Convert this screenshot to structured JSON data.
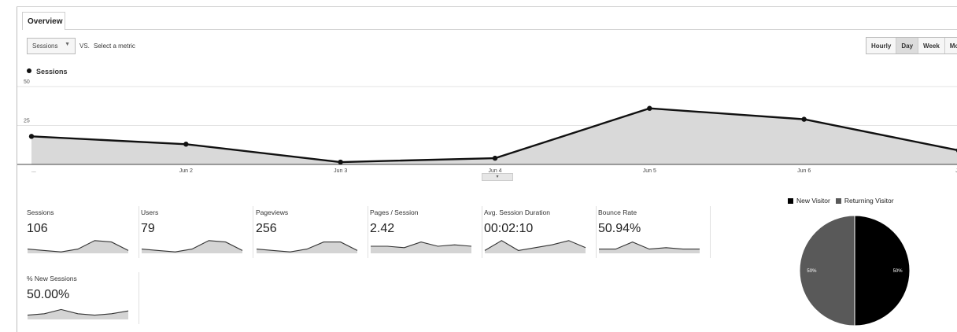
{
  "tab": {
    "label": "Overview"
  },
  "controls": {
    "metric_select": "Sessions",
    "vs_label": "VS.",
    "select_metric": "Select a metric",
    "periods": [
      "Hourly",
      "Day",
      "Week",
      "Mon"
    ],
    "active_period": "Day"
  },
  "chart_data": [
    {
      "type": "area",
      "series": [
        {
          "name": "Sessions",
          "values": [
            18,
            13,
            1.5,
            4,
            36,
            29,
            9
          ]
        }
      ],
      "categories": [
        "...",
        "Jun 2",
        "Jun 3",
        "Jun 4",
        "Jun 5",
        "Jun 6",
        "Ju"
      ],
      "yticks": [
        "50",
        "25"
      ],
      "ylim": [
        0,
        50
      ],
      "grid": true,
      "legend_position": "top-left"
    },
    {
      "type": "pie",
      "categories": [
        "New Visitor",
        "Returning Visitor"
      ],
      "values": [
        50,
        50
      ],
      "slice_labels": [
        "50%",
        "50%"
      ],
      "colors": [
        "#000000",
        "#595959"
      ],
      "legend_position": "top"
    }
  ],
  "scorecards": [
    {
      "label": "Sessions",
      "value": "106",
      "spark": [
        3,
        2,
        1,
        3,
        9,
        8,
        2
      ]
    },
    {
      "label": "Users",
      "value": "79",
      "spark": [
        3,
        2,
        1,
        3,
        9,
        8,
        2
      ]
    },
    {
      "label": "Pageviews",
      "value": "256",
      "spark": [
        3,
        2,
        1,
        3,
        8,
        8,
        2
      ]
    },
    {
      "label": "Pages / Session",
      "value": "2.42",
      "spark": [
        5,
        5,
        4,
        8,
        5,
        6,
        5
      ]
    },
    {
      "label": "Avg. Session Duration",
      "value": "00:02:10",
      "spark": [
        2,
        9,
        2,
        4,
        6,
        9,
        4
      ]
    },
    {
      "label": "Bounce Rate",
      "value": "50.94%",
      "spark": [
        3,
        3,
        8,
        3,
        4,
        3,
        3
      ]
    },
    {
      "label": "% New Sessions",
      "value": "50.00%",
      "spark": [
        3,
        4,
        7,
        4,
        3,
        4,
        6
      ]
    }
  ],
  "colors": {
    "line": "#111111",
    "fill": "#d9d9d9",
    "grid": "#e3e3e3",
    "spark_fill": "#d4d4d4"
  }
}
